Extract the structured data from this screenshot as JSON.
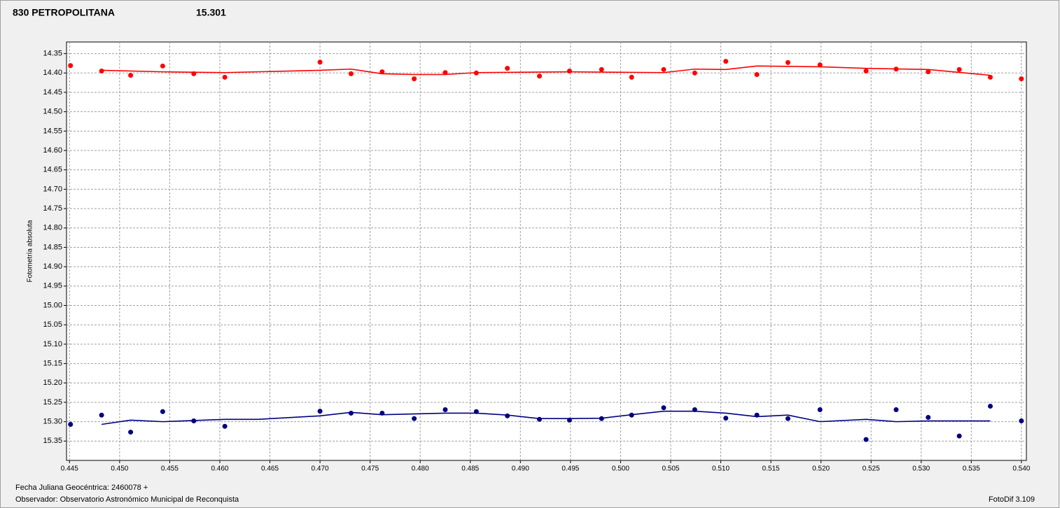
{
  "chart_data": {
    "type": "scatter",
    "title": "830 PETROPOLITANA",
    "title_color": "#ff0000",
    "subtitle": "15.301",
    "subtitle_color": "#000080",
    "y_label": "Fotometría absoluta",
    "footer_lines": [
      "Fecha Juliana Geocéntrica: 2460078 +",
      "Observador: Observatorio Astronómico Municipal de Reconquista"
    ],
    "version": "FotoDif 3.109",
    "grid": true,
    "y_inverted": true,
    "xlim": [
      0.4447,
      0.5405
    ],
    "ylim": [
      14.32,
      15.4
    ],
    "xticks": [
      {
        "value": 0.445,
        "label": "0.445"
      },
      {
        "value": 0.45,
        "label": "0.450"
      },
      {
        "value": 0.455,
        "label": "0.455"
      },
      {
        "value": 0.46,
        "label": "0.460"
      },
      {
        "value": 0.465,
        "label": "0.465"
      },
      {
        "value": 0.47,
        "label": "0.470"
      },
      {
        "value": 0.475,
        "label": "0.475"
      },
      {
        "value": 0.48,
        "label": "0.480"
      },
      {
        "value": 0.485,
        "label": "0.485"
      },
      {
        "value": 0.49,
        "label": "0.490"
      },
      {
        "value": 0.495,
        "label": "0.495"
      },
      {
        "value": 0.5,
        "label": "0.500"
      },
      {
        "value": 0.505,
        "label": "0.505"
      },
      {
        "value": 0.51,
        "label": "0.510"
      },
      {
        "value": 0.515,
        "label": "0.515"
      },
      {
        "value": 0.52,
        "label": "0.520"
      },
      {
        "value": 0.525,
        "label": "0.525"
      },
      {
        "value": 0.53,
        "label": "0.530"
      },
      {
        "value": 0.535,
        "label": "0.535"
      },
      {
        "value": 0.54,
        "label": "0.540"
      }
    ],
    "yticks": [
      {
        "value": 14.35,
        "label": "14.35"
      },
      {
        "value": 14.4,
        "label": "14.40"
      },
      {
        "value": 14.45,
        "label": "14.45"
      },
      {
        "value": 14.5,
        "label": "14.50"
      },
      {
        "value": 14.55,
        "label": "14.55"
      },
      {
        "value": 14.6,
        "label": "14.60"
      },
      {
        "value": 14.65,
        "label": "14.65"
      },
      {
        "value": 14.7,
        "label": "14.70"
      },
      {
        "value": 14.75,
        "label": "14.75"
      },
      {
        "value": 14.8,
        "label": "14.80"
      },
      {
        "value": 14.85,
        "label": "14.85"
      },
      {
        "value": 14.9,
        "label": "14.90"
      },
      {
        "value": 14.95,
        "label": "14.95"
      },
      {
        "value": 15.0,
        "label": "15.00"
      },
      {
        "value": 15.05,
        "label": "15.05"
      },
      {
        "value": 15.1,
        "label": "15.10"
      },
      {
        "value": 15.15,
        "label": "15.15"
      },
      {
        "value": 15.2,
        "label": "15.20"
      },
      {
        "value": 15.25,
        "label": "15.25"
      },
      {
        "value": 15.3,
        "label": "15.30"
      },
      {
        "value": 15.35,
        "label": "15.35"
      }
    ],
    "series": [
      {
        "mode": "points",
        "color": "#ff0000",
        "x": [
          0.4451,
          0.4482,
          0.4511,
          0.4543,
          0.4574,
          0.4605,
          0.47,
          0.4731,
          0.4762,
          0.4794,
          0.4825,
          0.4856,
          0.4887,
          0.4919,
          0.4949,
          0.4981,
          0.5011,
          0.5043,
          0.5074,
          0.5105,
          0.5136,
          0.5167,
          0.5199,
          0.5245,
          0.5275,
          0.5307,
          0.5338,
          0.5369,
          0.54
        ],
        "values": [
          14.381,
          14.395,
          14.406,
          14.382,
          14.402,
          14.411,
          14.372,
          14.402,
          14.397,
          14.415,
          14.399,
          14.4,
          14.388,
          14.408,
          14.395,
          14.391,
          14.411,
          14.391,
          14.4,
          14.37,
          14.404,
          14.373,
          14.379,
          14.395,
          14.39,
          14.397,
          14.391,
          14.411,
          14.415
        ]
      },
      {
        "mode": "points",
        "color": "#000080",
        "x": [
          0.4451,
          0.4482,
          0.4511,
          0.4543,
          0.4574,
          0.4605,
          0.47,
          0.4731,
          0.4762,
          0.4794,
          0.4825,
          0.4856,
          0.4887,
          0.4919,
          0.4949,
          0.4981,
          0.5011,
          0.5043,
          0.5074,
          0.5105,
          0.5136,
          0.5167,
          0.5199,
          0.5245,
          0.5275,
          0.5307,
          0.5338,
          0.5369,
          0.54
        ],
        "values": [
          15.307,
          15.283,
          15.327,
          15.274,
          15.298,
          15.312,
          15.273,
          15.278,
          15.278,
          15.292,
          15.269,
          15.274,
          15.285,
          15.294,
          15.296,
          15.292,
          15.283,
          15.264,
          15.269,
          15.291,
          15.283,
          15.292,
          15.269,
          15.346,
          15.269,
          15.289,
          15.337,
          15.26,
          15.298
        ]
      },
      {
        "mode": "line",
        "color": "#ff0000",
        "x": [
          0.4482,
          0.4543,
          0.4605,
          0.47,
          0.4731,
          0.4762,
          0.4794,
          0.4825,
          0.4856,
          0.4949,
          0.5043,
          0.5074,
          0.5105,
          0.5136,
          0.5199,
          0.5245,
          0.5307,
          0.5369
        ],
        "values": [
          14.393,
          14.397,
          14.399,
          14.393,
          14.39,
          14.402,
          14.404,
          14.404,
          14.399,
          14.397,
          14.399,
          14.39,
          14.391,
          14.382,
          14.384,
          14.388,
          14.391,
          14.406
        ]
      },
      {
        "mode": "line",
        "color": "#000080",
        "x": [
          0.4482,
          0.4511,
          0.4543,
          0.4605,
          0.4638,
          0.47,
          0.4731,
          0.4762,
          0.4825,
          0.4856,
          0.4887,
          0.4919,
          0.4949,
          0.4981,
          0.5011,
          0.5043,
          0.5074,
          0.5105,
          0.5136,
          0.5167,
          0.5199,
          0.5245,
          0.5275,
          0.5307,
          0.5369
        ],
        "values": [
          15.307,
          15.296,
          15.3,
          15.294,
          15.294,
          15.285,
          15.276,
          15.282,
          15.278,
          15.278,
          15.283,
          15.292,
          15.292,
          15.291,
          15.282,
          15.273,
          15.273,
          15.278,
          15.287,
          15.283,
          15.3,
          15.294,
          15.3,
          15.298,
          15.298
        ]
      }
    ]
  }
}
